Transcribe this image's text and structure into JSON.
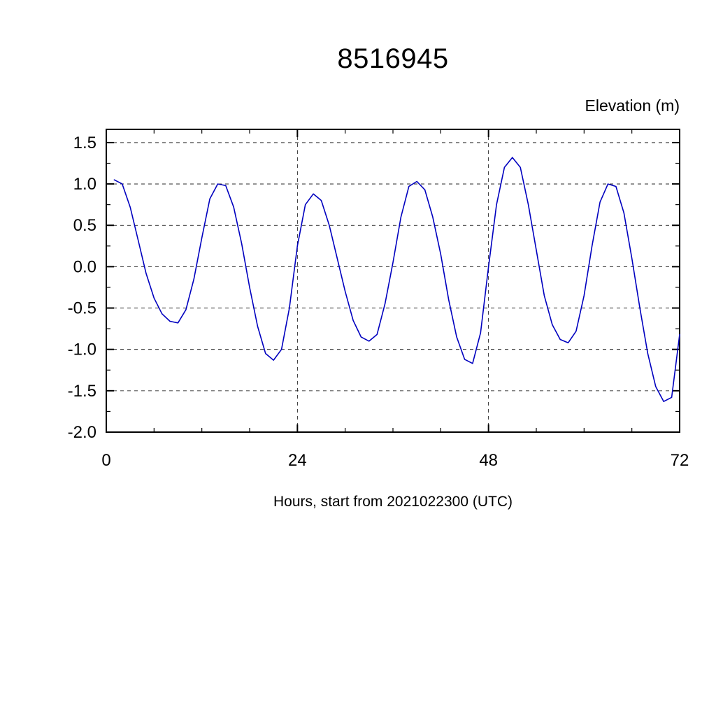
{
  "chart_data": {
    "type": "line",
    "title": "8516945",
    "ylabel": "Elevation (m)",
    "xlabel": "Hours, start from 2021022300 (UTC)",
    "xlim": [
      0,
      72
    ],
    "ylim": [
      -2.0,
      1.5
    ],
    "x_major_ticks": [
      0,
      24,
      48,
      72
    ],
    "x_major_labels": [
      "0",
      "24",
      "48",
      "72"
    ],
    "x_minor_interval": 6,
    "y_major_ticks": [
      -2.0,
      -1.5,
      -1.0,
      -0.5,
      0.0,
      0.5,
      1.0,
      1.5
    ],
    "y_major_labels": [
      "-2.0",
      "-1.5",
      "-1.0",
      "-0.5",
      "0.0",
      "0.5",
      "1.0",
      "1.5"
    ],
    "y_minor_interval": 0.25,
    "x_gridlines": [
      24,
      48
    ],
    "y_gridlines": [
      -1.5,
      -1.0,
      -0.5,
      0.0,
      0.5,
      1.0,
      1.5
    ],
    "grid": "dashed",
    "legend": "none",
    "line_color": "#0000bf",
    "series": [
      {
        "name": "elevation",
        "x": [
          1,
          2,
          3,
          4,
          5,
          6,
          7,
          8,
          9,
          10,
          11,
          12,
          13,
          14,
          15,
          16,
          17,
          18,
          19,
          20,
          21,
          22,
          23,
          24,
          25,
          26,
          27,
          28,
          29,
          30,
          31,
          32,
          33,
          34,
          35,
          36,
          37,
          38,
          39,
          40,
          41,
          42,
          43,
          44,
          45,
          46,
          47,
          48,
          49,
          50,
          51,
          52,
          53,
          54,
          55,
          56,
          57,
          58,
          59,
          60,
          61,
          62,
          63,
          64,
          65,
          66,
          67,
          68,
          69,
          70,
          71,
          72
        ],
        "y": [
          1.05,
          1.0,
          0.72,
          0.32,
          -0.08,
          -0.38,
          -0.57,
          -0.66,
          -0.68,
          -0.52,
          -0.15,
          0.35,
          0.82,
          1.0,
          0.98,
          0.72,
          0.28,
          -0.25,
          -0.72,
          -1.05,
          -1.13,
          -1.0,
          -0.5,
          0.25,
          0.75,
          0.88,
          0.8,
          0.5,
          0.1,
          -0.3,
          -0.65,
          -0.85,
          -0.9,
          -0.82,
          -0.45,
          0.05,
          0.6,
          0.97,
          1.03,
          0.93,
          0.6,
          0.15,
          -0.4,
          -0.85,
          -1.12,
          -1.17,
          -0.8,
          0.0,
          0.75,
          1.2,
          1.32,
          1.2,
          0.75,
          0.2,
          -0.35,
          -0.7,
          -0.88,
          -0.92,
          -0.78,
          -0.35,
          0.25,
          0.78,
          1.0,
          0.97,
          0.65,
          0.1,
          -0.5,
          -1.05,
          -1.45,
          -1.63,
          -1.58,
          -0.82
        ]
      }
    ]
  }
}
